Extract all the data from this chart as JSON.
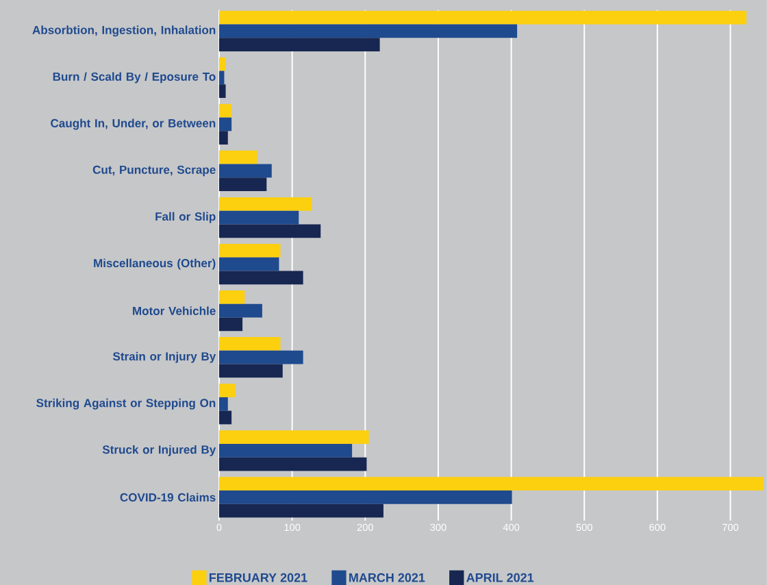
{
  "chart_data": {
    "type": "bar",
    "orientation": "horizontal",
    "categories": [
      "Absorbtion, Ingestion, Inhalation",
      "Burn / Scald By / Eposure To",
      "Caught In, Under, or Between",
      "Cut, Puncture, Scrape",
      "Fall or Slip",
      "Miscellaneous (Other)",
      "Motor Vehichle",
      "Strain or Injury By",
      "Striking Against or Stepping On",
      "Struck or Injured By",
      "COVID-19 Claims"
    ],
    "series": [
      {
        "name": "FEBRUARY 2021",
        "color": "#fcd00f",
        "values": [
          722,
          9,
          17,
          52,
          127,
          84,
          35,
          84,
          22,
          205,
          745
        ]
      },
      {
        "name": "MARCH 2021",
        "color": "#1f4a8e",
        "values": [
          408,
          7,
          17,
          72,
          109,
          82,
          59,
          115,
          12,
          182,
          401
        ]
      },
      {
        "name": "APRIL 2021",
        "color": "#172752",
        "values": [
          220,
          9,
          12,
          65,
          139,
          115,
          32,
          87,
          17,
          202,
          225
        ]
      }
    ],
    "xlim": [
      0,
      750
    ],
    "xticks": [
      0,
      100,
      200,
      300,
      400,
      500,
      600,
      700
    ],
    "grid": "x",
    "legend": "bottom"
  }
}
